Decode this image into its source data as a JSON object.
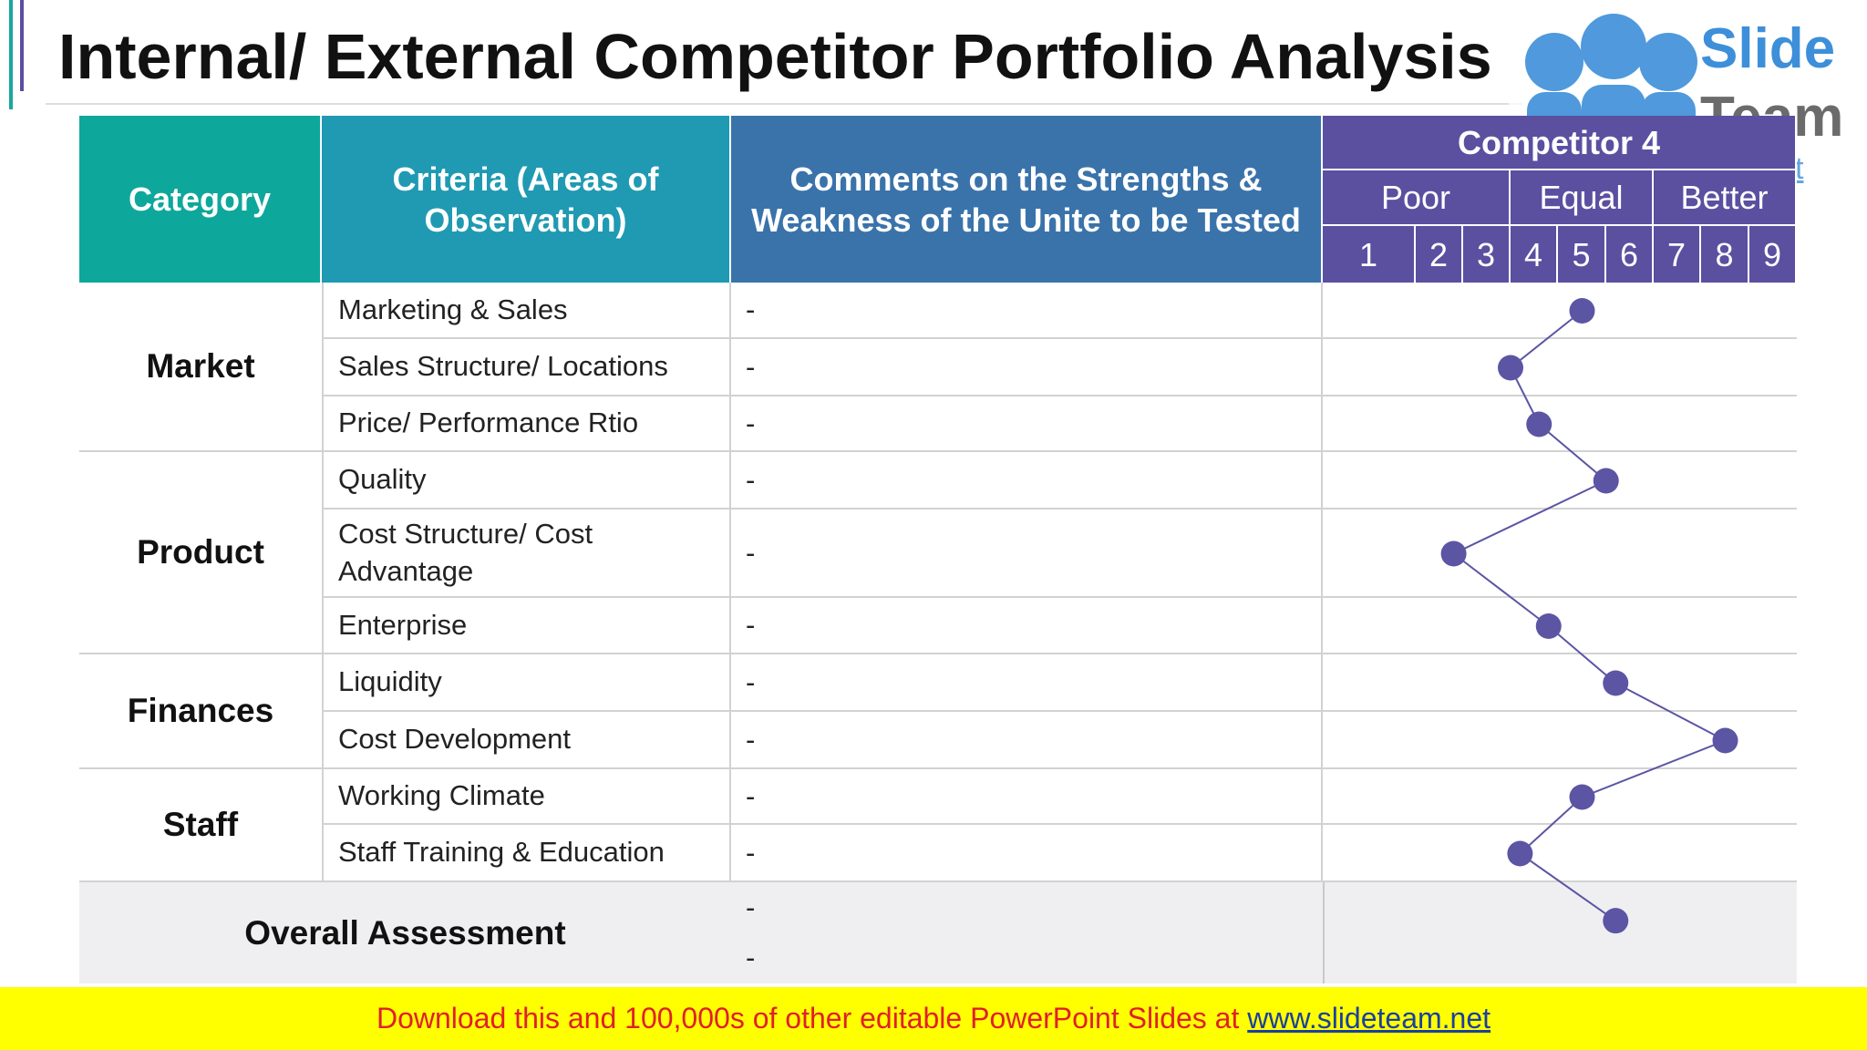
{
  "title": "Internal/ External Competitor Portfolio Analysis",
  "logo": {
    "brand_top": "Slide",
    "brand_bottom": "Team",
    "url": "www.slideteam.net"
  },
  "table": {
    "headers": [
      "Category",
      "Criteria (Areas of Observation)",
      "Comments on the Strengths & Weakness of the Unite to be Tested"
    ],
    "competitor": "Competitor 4",
    "scale_groups": [
      "Poor",
      "Equal",
      "Better"
    ],
    "scale_ticks": [
      1,
      2,
      3,
      4,
      5,
      6,
      7,
      8,
      9
    ],
    "groups": [
      {
        "category": "Market",
        "rows": [
          {
            "criteria": "Marketing & Sales",
            "comment": "-",
            "score": 5
          },
          {
            "criteria": "Sales Structure/ Locations",
            "comment": "-",
            "score": 3.5
          },
          {
            "criteria": "Price/ Performance Rtio",
            "comment": "-",
            "score": 4.1
          }
        ]
      },
      {
        "category": "Product",
        "rows": [
          {
            "criteria": "Quality",
            "comment": "-",
            "score": 5.5
          },
          {
            "criteria": "Cost Structure/ Cost Advantage",
            "comment": "-",
            "score": 2.3
          },
          {
            "criteria": "Enterprise",
            "comment": "-",
            "score": 4.3
          }
        ]
      },
      {
        "category": "Finances",
        "rows": [
          {
            "criteria": "Liquidity",
            "comment": "-",
            "score": 5.7
          },
          {
            "criteria": "Cost Development",
            "comment": "-",
            "score": 8
          }
        ]
      },
      {
        "category": "Staff",
        "rows": [
          {
            "criteria": "Working Climate",
            "comment": "-",
            "score": 5
          },
          {
            "criteria": "Staff Training & Education",
            "comment": "-",
            "score": 3.7
          }
        ]
      }
    ],
    "overall": {
      "label": "Overall Assessment",
      "comments": [
        "-",
        "-"
      ],
      "score": 5.7
    }
  },
  "footer": {
    "text": "Download this and 100,000s of other editable PowerPoint Slides at ",
    "link": "www.slideteam.net"
  }
}
